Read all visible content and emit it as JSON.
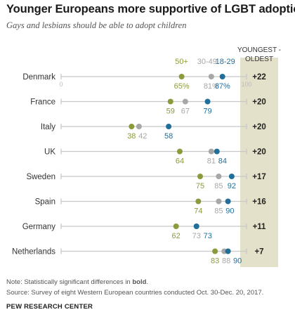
{
  "title": "Younger Europeans more supportive of LGBT adoption",
  "subtitle": "Gays and lesbians should be able to adopt children",
  "colors": {
    "youngest": "#1f6f9a",
    "middle": "#a7a7a7",
    "oldest": "#8b9b3c",
    "diff_band": "#e3e1c9",
    "track": "#c8c8c8"
  },
  "chart_data": {
    "type": "dot",
    "title": "Younger Europeans more supportive of LGBT adoption",
    "subtitle": "Gays and lesbians should be able to adopt children",
    "xlim": [
      0,
      100
    ],
    "axis_tick_labels": [
      "0",
      "100"
    ],
    "diff_header": [
      "YOUNGEST -",
      "OLDEST"
    ],
    "series": [
      {
        "name": "18-29",
        "color_key": "youngest"
      },
      {
        "name": "30-49",
        "color_key": "middle"
      },
      {
        "name": "50+",
        "color_key": "oldest"
      }
    ],
    "categories": [
      "Denmark",
      "France",
      "Italy",
      "UK",
      "Sweden",
      "Spain",
      "Germany",
      "Netherlands"
    ],
    "rows": [
      {
        "country": "Denmark",
        "age_50_plus": 65,
        "age_30_49": 81,
        "age_18_29": 87,
        "diff": "+22",
        "labels": [
          "65%",
          "81%",
          "87%"
        ]
      },
      {
        "country": "France",
        "age_50_plus": 59,
        "age_30_49": 67,
        "age_18_29": 79,
        "diff": "+20",
        "labels": [
          "59",
          "67",
          "79"
        ]
      },
      {
        "country": "Italy",
        "age_50_plus": 38,
        "age_30_49": 42,
        "age_18_29": 58,
        "diff": "+20",
        "labels": [
          "38",
          "42",
          "58"
        ]
      },
      {
        "country": "UK",
        "age_50_plus": 64,
        "age_30_49": 81,
        "age_18_29": 84,
        "diff": "+20",
        "labels": [
          "64",
          "81",
          "84"
        ]
      },
      {
        "country": "Sweden",
        "age_50_plus": 75,
        "age_30_49": 85,
        "age_18_29": 92,
        "diff": "+17",
        "labels": [
          "75",
          "85",
          "92"
        ]
      },
      {
        "country": "Spain",
        "age_50_plus": 74,
        "age_30_49": 85,
        "age_18_29": 90,
        "diff": "+16",
        "labels": [
          "74",
          "85",
          "90"
        ]
      },
      {
        "country": "Germany",
        "age_50_plus": 62,
        "age_30_49": 73,
        "age_18_29": 73,
        "diff": "+11",
        "labels": [
          "62",
          "73",
          "73"
        ]
      },
      {
        "country": "Netherlands",
        "age_50_plus": 83,
        "age_30_49": 88,
        "age_18_29": 90,
        "diff": "+7",
        "labels": [
          "83",
          "88",
          "90"
        ]
      }
    ]
  },
  "note": {
    "prefix": "Note: Statistically significant differences in ",
    "bold": "bold",
    "suffix": "."
  },
  "source": "Source: Survey of eight Western European countries conducted Oct. 30-Dec. 20, 2017.",
  "org": "PEW RESEARCH CENTER"
}
